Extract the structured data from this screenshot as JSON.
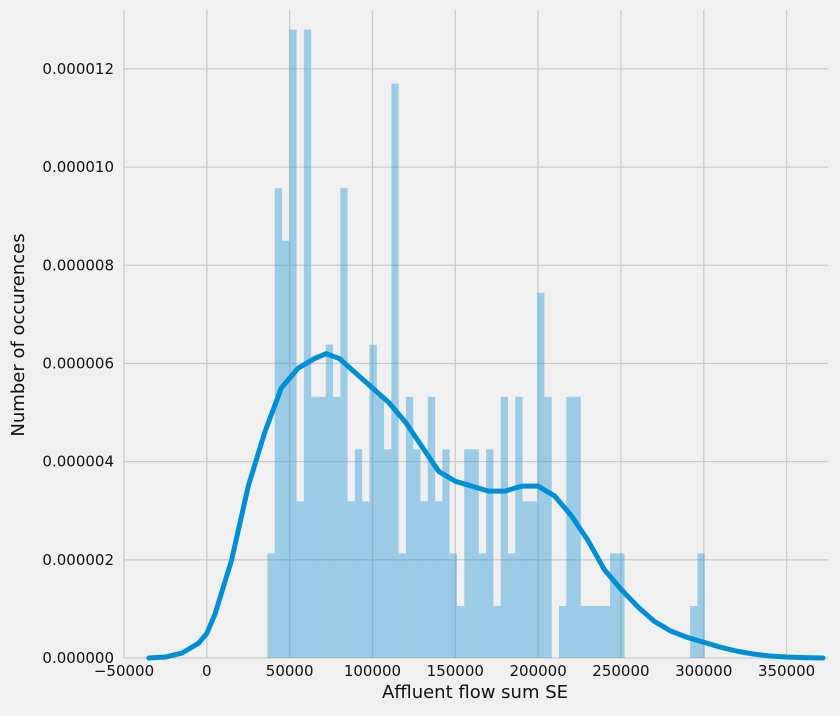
{
  "chart_data": {
    "type": "bar",
    "overlay": "kde-line",
    "title": "",
    "xlabel": "Affluent flow sum SE",
    "ylabel": "Number of occurences",
    "xlim": [
      -50000,
      375000
    ],
    "ylim": [
      0,
      1.32e-05
    ],
    "grid": true,
    "legend": "none",
    "x_ticks": [
      -50000,
      0,
      50000,
      100000,
      150000,
      200000,
      250000,
      300000,
      350000
    ],
    "x_tick_labels": [
      "−50000",
      "0",
      "50000",
      "100000",
      "150000",
      "200000",
      "250000",
      "300000",
      "350000"
    ],
    "y_ticks": [
      0,
      2e-06,
      4e-06,
      6e-06,
      8e-06,
      1e-05,
      1.2e-05
    ],
    "y_tick_labels": [
      "0.000000",
      "0.000002",
      "0.000004",
      "0.000006",
      "0.000008",
      "0.000010",
      "0.000012"
    ],
    "colors": {
      "bar": "#1f93d7",
      "line": "#008fd5",
      "grid": "#cbcbcb",
      "background": "#f0f0f0"
    },
    "histogram": {
      "bin_width": 4400,
      "bin_starts": [
        36600,
        41000,
        45400,
        49800,
        54200,
        58600,
        63000,
        67400,
        71800,
        76200,
        80600,
        85000,
        89400,
        93800,
        98200,
        102600,
        107000,
        111400,
        115800,
        120200,
        124600,
        129000,
        133400,
        137800,
        142200,
        146600,
        151000,
        155400,
        159800,
        164200,
        168600,
        173000,
        177400,
        181800,
        186200,
        190600,
        195000,
        199400,
        203800,
        208200,
        212600,
        217000,
        221400,
        225800,
        230200,
        234600,
        239000,
        243400,
        247800,
        252200,
        256600,
        261000,
        265400,
        269800,
        274200,
        278600,
        283000,
        287400,
        291800,
        296200,
        300600
      ],
      "densities": [
        2.13e-06,
        9.57e-06,
        8.5e-06,
        1.28e-05,
        3.19e-06,
        1.28e-05,
        5.32e-06,
        5.32e-06,
        6.38e-06,
        5.32e-06,
        9.57e-06,
        3.19e-06,
        4.25e-06,
        3.19e-06,
        6.38e-06,
        5.32e-06,
        4.25e-06,
        1.17e-05,
        2.13e-06,
        5.32e-06,
        4.25e-06,
        3.19e-06,
        5.32e-06,
        3.19e-06,
        4.25e-06,
        2.13e-06,
        1.06e-06,
        4.25e-06,
        4.25e-06,
        2.13e-06,
        4.25e-06,
        1.06e-06,
        5.32e-06,
        2.13e-06,
        5.32e-06,
        3.19e-06,
        3.19e-06,
        7.44e-06,
        5.32e-06,
        0,
        1.06e-06,
        5.32e-06,
        5.32e-06,
        1.06e-06,
        1.06e-06,
        1.06e-06,
        1.06e-06,
        2.13e-06,
        2.13e-06,
        0,
        0,
        0,
        0,
        0,
        0,
        0,
        0,
        0,
        1.06e-06,
        2.13e-06,
        0
      ]
    },
    "kde": {
      "x": [
        -35000,
        -25000,
        -15000,
        -5000,
        0,
        5000,
        15000,
        25000,
        35000,
        45000,
        55000,
        65000,
        72000,
        80000,
        90000,
        100000,
        110000,
        120000,
        130000,
        140000,
        150000,
        160000,
        170000,
        180000,
        190000,
        200000,
        210000,
        220000,
        230000,
        240000,
        250000,
        260000,
        270000,
        280000,
        290000,
        300000,
        310000,
        320000,
        330000,
        340000,
        350000,
        360000,
        372000
      ],
      "y": [
        0,
        2e-08,
        1e-07,
        3e-07,
        5e-07,
        9e-07,
        2e-06,
        3.5e-06,
        4.6e-06,
        5.5e-06,
        5.9e-06,
        6.1e-06,
        6.2e-06,
        6.1e-06,
        5.8e-06,
        5.5e-06,
        5.2e-06,
        4.8e-06,
        4.3e-06,
        3.8e-06,
        3.6e-06,
        3.5e-06,
        3.4e-06,
        3.4e-06,
        3.5e-06,
        3.5e-06,
        3.3e-06,
        2.9e-06,
        2.4e-06,
        1.8e-06,
        1.4e-06,
        1.05e-06,
        7.5e-07,
        5.5e-07,
        4.2e-07,
        3.2e-07,
        2.2e-07,
        1.4e-07,
        8e-08,
        4e-08,
        2e-08,
        8e-09,
        0
      ]
    }
  }
}
